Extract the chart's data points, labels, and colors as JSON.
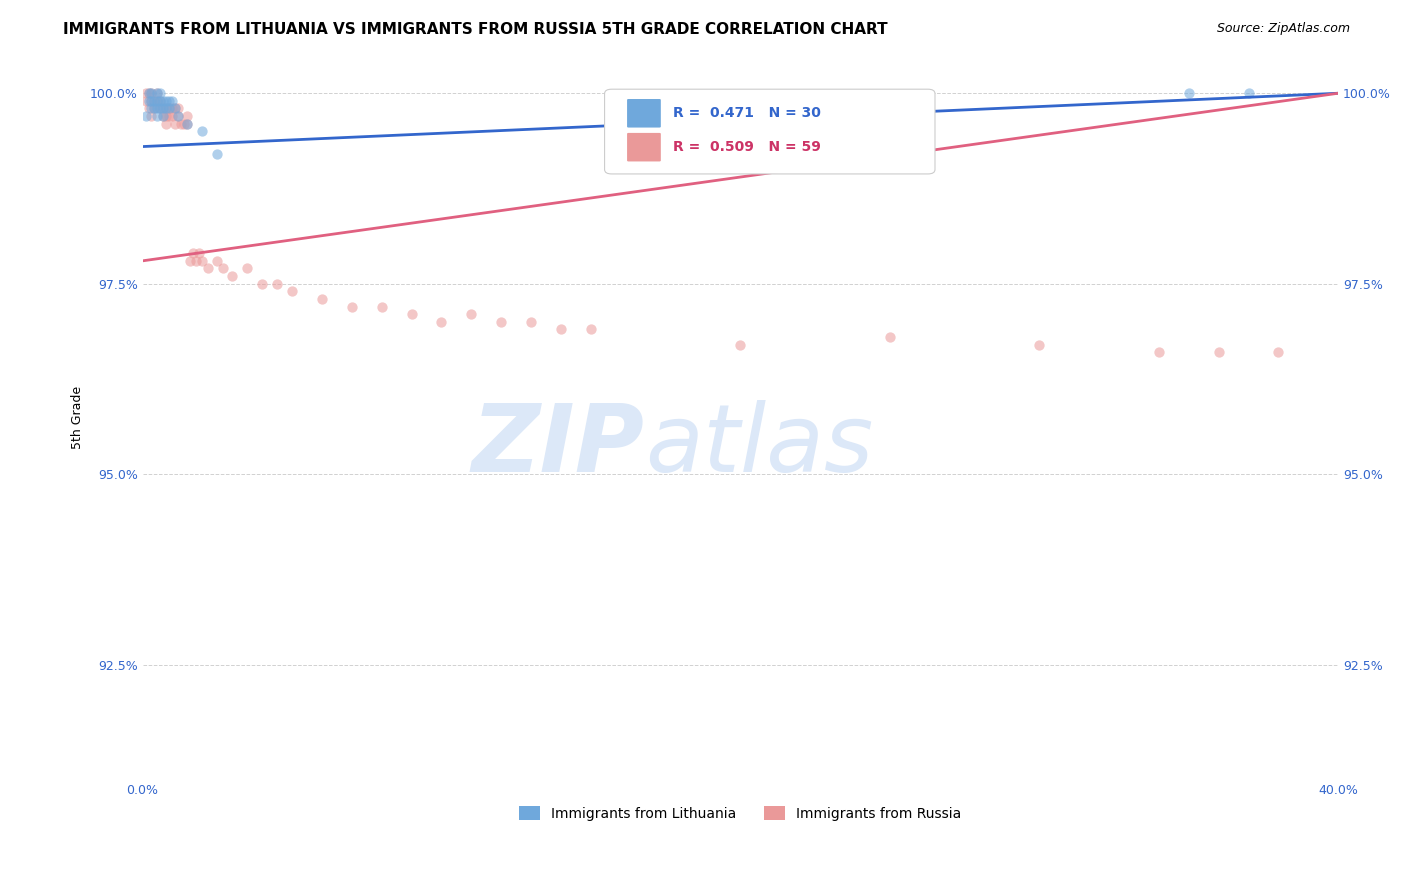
{
  "title": "IMMIGRANTS FROM LITHUANIA VS IMMIGRANTS FROM RUSSIA 5TH GRADE CORRELATION CHART",
  "source": "Source: ZipAtlas.com",
  "ylabel": "5th Grade",
  "xlim": [
    0.0,
    0.4
  ],
  "ylim": [
    0.91,
    1.005
  ],
  "xtick_labels": [
    "0.0%",
    "",
    "",
    "",
    "",
    "",
    "",
    "",
    "40.0%"
  ],
  "xtick_positions": [
    0.0,
    0.05,
    0.1,
    0.15,
    0.2,
    0.25,
    0.3,
    0.35,
    0.4
  ],
  "ytick_labels": [
    "92.5%",
    "95.0%",
    "97.5%",
    "100.0%"
  ],
  "ytick_positions": [
    0.925,
    0.95,
    0.975,
    1.0
  ],
  "legend_labels": [
    "Immigrants from Lithuania",
    "Immigrants from Russia"
  ],
  "blue_color": "#6fa8dc",
  "pink_color": "#ea9999",
  "blue_line_color": "#3366cc",
  "pink_line_color": "#e06080",
  "background_color": "#ffffff",
  "title_fontsize": 11,
  "source_fontsize": 9,
  "axis_label_fontsize": 9,
  "tick_fontsize": 9,
  "scatter_alpha": 0.55,
  "scatter_size": 55,
  "lit_x": [
    0.001,
    0.002,
    0.002,
    0.003,
    0.003,
    0.003,
    0.004,
    0.004,
    0.005,
    0.005,
    0.005,
    0.005,
    0.006,
    0.006,
    0.006,
    0.007,
    0.007,
    0.007,
    0.008,
    0.008,
    0.009,
    0.009,
    0.01,
    0.011,
    0.012,
    0.015,
    0.02,
    0.025,
    0.35,
    0.37
  ],
  "lit_y": [
    0.997,
    1.0,
    0.999,
    1.0,
    0.999,
    0.998,
    0.999,
    0.998,
    1.0,
    0.999,
    0.998,
    0.997,
    1.0,
    0.999,
    0.998,
    0.999,
    0.998,
    0.997,
    0.999,
    0.998,
    0.999,
    0.998,
    0.999,
    0.998,
    0.997,
    0.996,
    0.995,
    0.992,
    1.0,
    1.0
  ],
  "rus_x": [
    0.001,
    0.001,
    0.002,
    0.002,
    0.003,
    0.003,
    0.003,
    0.004,
    0.004,
    0.005,
    0.005,
    0.006,
    0.006,
    0.007,
    0.007,
    0.008,
    0.008,
    0.008,
    0.009,
    0.009,
    0.01,
    0.01,
    0.011,
    0.011,
    0.012,
    0.012,
    0.013,
    0.014,
    0.015,
    0.015,
    0.016,
    0.017,
    0.018,
    0.019,
    0.02,
    0.022,
    0.025,
    0.027,
    0.03,
    0.035,
    0.04,
    0.045,
    0.05,
    0.06,
    0.07,
    0.08,
    0.09,
    0.1,
    0.11,
    0.12,
    0.13,
    0.14,
    0.15,
    0.2,
    0.25,
    0.3,
    0.34,
    0.36,
    0.38
  ],
  "rus_y": [
    1.0,
    0.999,
    1.0,
    0.998,
    1.0,
    0.999,
    0.997,
    0.999,
    0.998,
    1.0,
    0.999,
    0.999,
    0.998,
    0.998,
    0.997,
    0.998,
    0.997,
    0.996,
    0.998,
    0.997,
    0.998,
    0.997,
    0.998,
    0.996,
    0.998,
    0.997,
    0.996,
    0.996,
    0.997,
    0.996,
    0.978,
    0.979,
    0.978,
    0.979,
    0.978,
    0.977,
    0.978,
    0.977,
    0.976,
    0.977,
    0.975,
    0.975,
    0.974,
    0.973,
    0.972,
    0.972,
    0.971,
    0.97,
    0.971,
    0.97,
    0.97,
    0.969,
    0.969,
    0.967,
    0.968,
    0.967,
    0.966,
    0.966,
    0.966
  ],
  "blue_line_x0": 0.0,
  "blue_line_y0": 0.993,
  "blue_line_x1": 0.4,
  "blue_line_y1": 1.0,
  "pink_line_x0": 0.0,
  "pink_line_y0": 0.978,
  "pink_line_x1": 0.4,
  "pink_line_y1": 1.0
}
